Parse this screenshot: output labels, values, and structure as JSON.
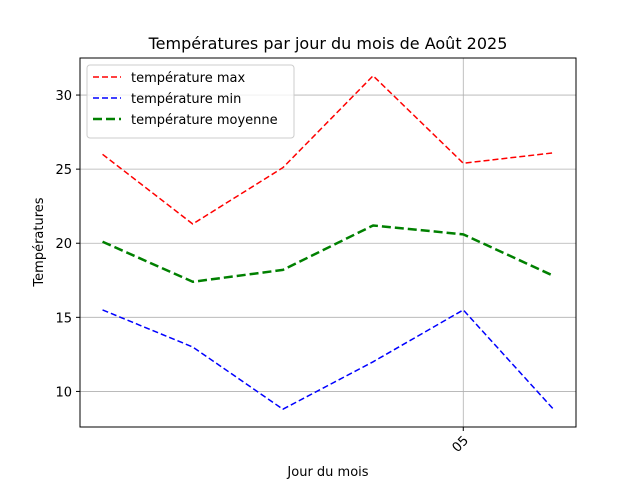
{
  "chart_data": {
    "type": "line",
    "title": "Températures par jour du mois de Août 2025",
    "xlabel": "Jour du mois",
    "ylabel": "Températures",
    "x": [
      1,
      2,
      3,
      4,
      5,
      6
    ],
    "xlim": [
      0.75,
      6.25
    ],
    "ylim": [
      7.6,
      32.5
    ],
    "yticks": [
      10,
      15,
      20,
      25,
      30
    ],
    "xticks": [
      {
        "value": 5,
        "label": "05"
      }
    ],
    "grid": true,
    "legend_position": "top-left",
    "series": [
      {
        "name": "température max",
        "values": [
          26.0,
          21.3,
          25.1,
          31.3,
          25.4,
          26.1
        ],
        "color": "#ff0000",
        "dash": "dashed",
        "linewidth": 1.5
      },
      {
        "name": "température min",
        "values": [
          15.5,
          13.0,
          8.8,
          12.0,
          15.5,
          8.8
        ],
        "color": "#0000ff",
        "dash": "dashed",
        "linewidth": 1.5
      },
      {
        "name": "température moyenne",
        "values": [
          20.1,
          17.4,
          18.2,
          21.2,
          20.6,
          17.8
        ],
        "color": "#008000",
        "dash": "dashed",
        "linewidth": 2.5
      }
    ]
  }
}
